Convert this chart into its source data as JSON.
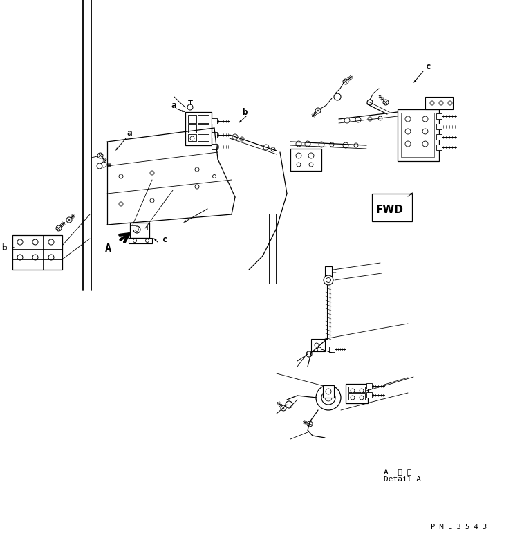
{
  "background_color": "#ffffff",
  "line_color": "#000000",
  "text_color": "#000000",
  "fig_width": 7.42,
  "fig_height": 8.01,
  "dpi": 100,
  "bottom_text1": "A  詳 細",
  "bottom_text2": "Detail A",
  "watermark": "P M E 3 5 4 3",
  "fwd_label": "FWD"
}
